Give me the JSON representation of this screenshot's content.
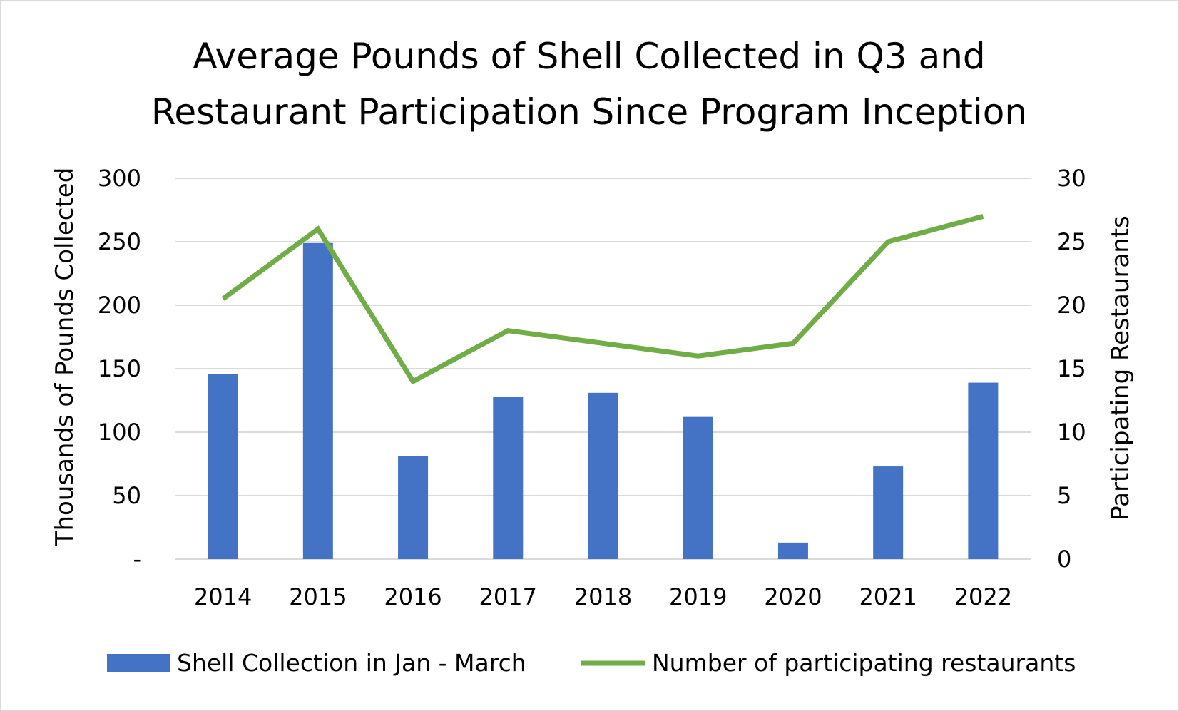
{
  "chart_data": {
    "type": "bar",
    "title_lines": [
      "Average Pounds of Shell Collected in Q3 and",
      "Restaurant Participation Since Program Inception"
    ],
    "categories": [
      "2014",
      "2015",
      "2016",
      "2017",
      "2018",
      "2019",
      "2020",
      "2021",
      "2022"
    ],
    "series": [
      {
        "name": "Shell Collection in Jan - March",
        "type": "bar",
        "axis": "left",
        "color": "#4472C4",
        "values": [
          146,
          249,
          81,
          128,
          131,
          112,
          13,
          73,
          139
        ]
      },
      {
        "name": "Number of participating restaurants",
        "type": "line",
        "axis": "right",
        "color": "#70AD47",
        "values": [
          20.5,
          26,
          14,
          18,
          17,
          16,
          17,
          25,
          27
        ]
      }
    ],
    "ylabel": "Thousands of Pounds Collected",
    "y2label": "Participating Restaurants",
    "ylim": [
      0,
      300
    ],
    "y2lim": [
      0,
      30
    ],
    "yticks": [
      "-",
      "50",
      "100",
      "150",
      "200",
      "250",
      "300"
    ],
    "y2ticks": [
      "0",
      "5",
      "10",
      "15",
      "20",
      "25",
      "30"
    ],
    "grid": true,
    "legend_position": "bottom",
    "gridline_color": "#d9d9d9"
  }
}
